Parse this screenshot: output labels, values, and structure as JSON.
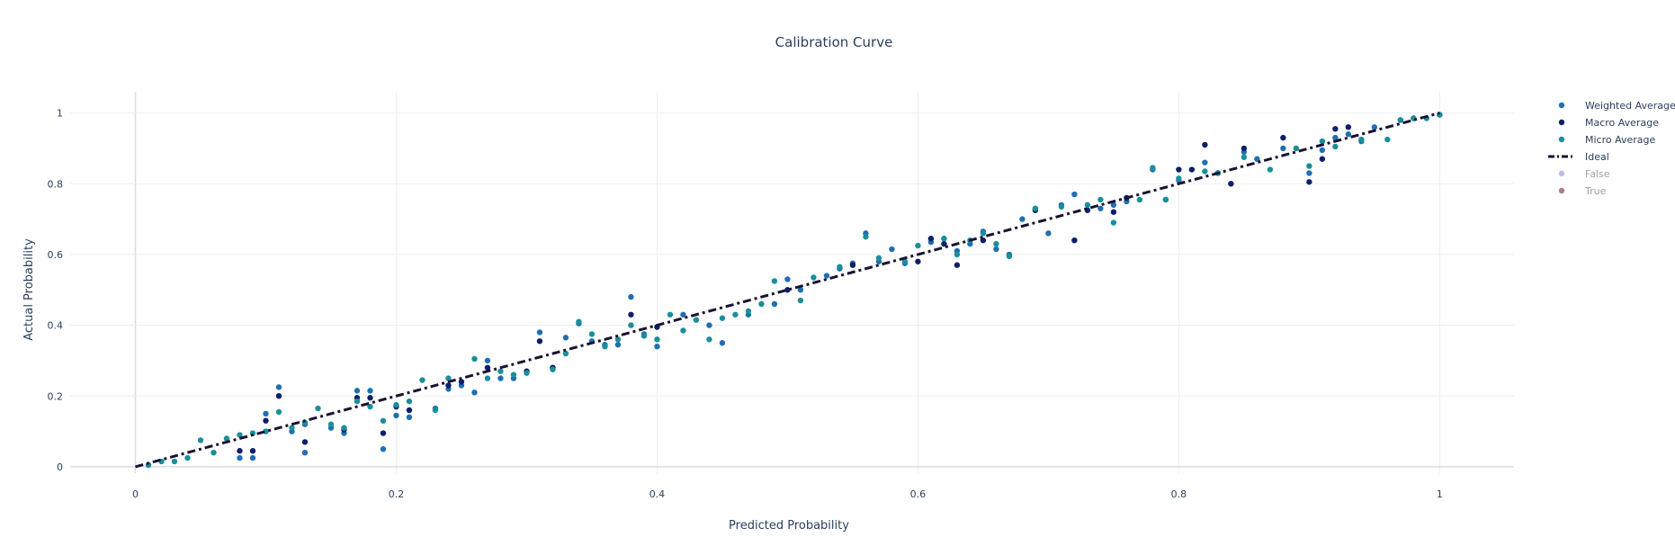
{
  "chart_data": {
    "type": "scatter",
    "title": "Calibration Curve",
    "xlabel": "Predicted Probability",
    "ylabel": "Actual Probability",
    "xlim": [
      -0.05,
      1.057
    ],
    "ylim": [
      -0.018,
      1.06
    ],
    "xticks": [
      0,
      0.2,
      0.4,
      0.6,
      0.8,
      1
    ],
    "yticks": [
      0,
      0.2,
      0.4,
      0.6,
      0.8,
      1
    ],
    "xtick_labels": [
      "0",
      "0.2",
      "0.4",
      "0.6",
      "0.8",
      "1"
    ],
    "ytick_labels": [
      "0",
      "0.2",
      "0.4",
      "0.6",
      "0.8",
      "1"
    ],
    "grid": true,
    "legend_position": "right",
    "series": [
      {
        "name": "Weighted Average",
        "mode": "markers",
        "color": "#1f6fb2",
        "x": [
          0.01,
          0.08,
          0.09,
          0.1,
          0.11,
          0.12,
          0.13,
          0.13,
          0.15,
          0.16,
          0.17,
          0.18,
          0.19,
          0.2,
          0.21,
          0.23,
          0.24,
          0.25,
          0.26,
          0.27,
          0.28,
          0.29,
          0.31,
          0.32,
          0.33,
          0.34,
          0.35,
          0.36,
          0.37,
          0.38,
          0.39,
          0.4,
          0.42,
          0.44,
          0.45,
          0.47,
          0.49,
          0.5,
          0.51,
          0.53,
          0.54,
          0.55,
          0.56,
          0.57,
          0.58,
          0.59,
          0.61,
          0.62,
          0.63,
          0.64,
          0.65,
          0.66,
          0.67,
          0.68,
          0.69,
          0.7,
          0.71,
          0.72,
          0.74,
          0.75,
          0.76,
          0.78,
          0.79,
          0.8,
          0.82,
          0.83,
          0.84,
          0.85,
          0.86,
          0.88,
          0.9,
          0.91,
          0.92,
          0.93,
          0.94,
          0.95,
          0.97,
          0.98,
          1.0
        ],
        "y": [
          0.005,
          0.025,
          0.025,
          0.15,
          0.225,
          0.1,
          0.04,
          0.12,
          0.11,
          0.095,
          0.215,
          0.215,
          0.05,
          0.145,
          0.14,
          0.165,
          0.22,
          0.23,
          0.21,
          0.3,
          0.25,
          0.25,
          0.38,
          0.28,
          0.365,
          0.405,
          0.355,
          0.345,
          0.345,
          0.48,
          0.375,
          0.34,
          0.43,
          0.4,
          0.35,
          0.43,
          0.46,
          0.53,
          0.5,
          0.54,
          0.56,
          0.575,
          0.66,
          0.58,
          0.615,
          0.575,
          0.635,
          0.645,
          0.61,
          0.63,
          0.665,
          0.615,
          0.6,
          0.7,
          0.73,
          0.66,
          0.74,
          0.77,
          0.73,
          0.74,
          0.75,
          0.84,
          0.755,
          0.81,
          0.86,
          0.83,
          0.8,
          0.89,
          0.87,
          0.9,
          0.83,
          0.895,
          0.93,
          0.94,
          0.92,
          0.96,
          0.98,
          0.985,
          0.995
        ]
      },
      {
        "name": "Macro Average",
        "mode": "markers",
        "color": "#0c1f6b",
        "x": [
          0.08,
          0.09,
          0.1,
          0.11,
          0.13,
          0.16,
          0.17,
          0.18,
          0.19,
          0.2,
          0.21,
          0.24,
          0.25,
          0.27,
          0.3,
          0.31,
          0.32,
          0.38,
          0.4,
          0.5,
          0.55,
          0.6,
          0.61,
          0.62,
          0.63,
          0.65,
          0.69,
          0.72,
          0.73,
          0.75,
          0.76,
          0.8,
          0.81,
          0.82,
          0.83,
          0.84,
          0.85,
          0.88,
          0.9,
          0.91,
          0.92,
          0.93
        ],
        "y": [
          0.045,
          0.045,
          0.13,
          0.2,
          0.07,
          0.105,
          0.195,
          0.195,
          0.095,
          0.17,
          0.16,
          0.23,
          0.24,
          0.28,
          0.27,
          0.355,
          0.28,
          0.43,
          0.395,
          0.5,
          0.57,
          0.58,
          0.645,
          0.63,
          0.57,
          0.64,
          0.725,
          0.64,
          0.725,
          0.72,
          0.76,
          0.84,
          0.84,
          0.91,
          0.83,
          0.8,
          0.9,
          0.93,
          0.805,
          0.87,
          0.955,
          0.96
        ]
      },
      {
        "name": "Micro Average",
        "mode": "markers",
        "color": "#1a8f9a",
        "x": [
          0.01,
          0.02,
          0.03,
          0.04,
          0.05,
          0.06,
          0.07,
          0.08,
          0.09,
          0.1,
          0.11,
          0.12,
          0.13,
          0.14,
          0.15,
          0.16,
          0.17,
          0.18,
          0.19,
          0.2,
          0.21,
          0.22,
          0.23,
          0.24,
          0.26,
          0.27,
          0.28,
          0.29,
          0.3,
          0.32,
          0.33,
          0.34,
          0.35,
          0.36,
          0.37,
          0.38,
          0.39,
          0.4,
          0.41,
          0.42,
          0.43,
          0.44,
          0.45,
          0.46,
          0.47,
          0.48,
          0.49,
          0.51,
          0.52,
          0.54,
          0.56,
          0.57,
          0.59,
          0.6,
          0.62,
          0.63,
          0.64,
          0.65,
          0.66,
          0.67,
          0.69,
          0.71,
          0.73,
          0.74,
          0.75,
          0.77,
          0.78,
          0.79,
          0.8,
          0.82,
          0.83,
          0.85,
          0.87,
          0.89,
          0.9,
          0.91,
          0.92,
          0.94,
          0.96,
          0.97,
          0.98,
          0.99,
          1.0
        ],
        "y": [
          0.005,
          0.015,
          0.015,
          0.025,
          0.075,
          0.04,
          0.08,
          0.09,
          0.095,
          0.1,
          0.155,
          0.11,
          0.125,
          0.165,
          0.12,
          0.11,
          0.185,
          0.17,
          0.13,
          0.175,
          0.185,
          0.245,
          0.16,
          0.25,
          0.305,
          0.25,
          0.27,
          0.26,
          0.265,
          0.275,
          0.32,
          0.41,
          0.375,
          0.34,
          0.36,
          0.4,
          0.37,
          0.36,
          0.43,
          0.385,
          0.415,
          0.36,
          0.42,
          0.43,
          0.44,
          0.46,
          0.525,
          0.47,
          0.535,
          0.565,
          0.65,
          0.59,
          0.58,
          0.625,
          0.645,
          0.6,
          0.64,
          0.66,
          0.63,
          0.595,
          0.73,
          0.735,
          0.74,
          0.755,
          0.69,
          0.755,
          0.845,
          0.755,
          0.815,
          0.835,
          0.83,
          0.875,
          0.84,
          0.9,
          0.85,
          0.92,
          0.905,
          0.925,
          0.925,
          0.98,
          0.985,
          0.985,
          0.995
        ]
      },
      {
        "name": "Ideal",
        "mode": "lines",
        "color": "#1a1230",
        "dash": "dashdot",
        "x": [
          0,
          1
        ],
        "y": [
          0,
          1
        ]
      },
      {
        "name": "False",
        "mode": "markers",
        "color": "#b3b0e0",
        "hidden": true,
        "x": [],
        "y": []
      },
      {
        "name": "True",
        "mode": "markers",
        "color": "#9a6a6a",
        "hidden": true,
        "x": [],
        "y": []
      }
    ]
  }
}
